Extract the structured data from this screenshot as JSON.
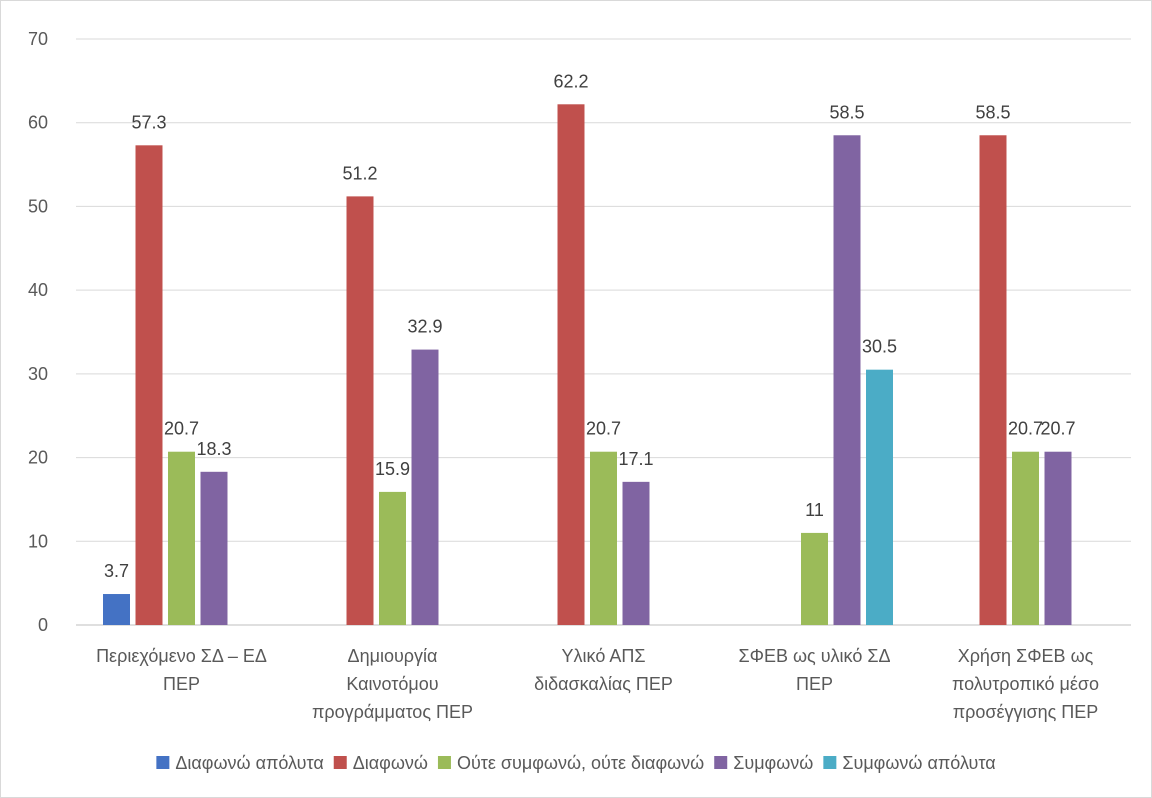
{
  "chart_data": {
    "type": "bar",
    "categories": [
      [
        "Περιεχόμενο ΣΔ – ΕΔ",
        "ΠΕΡ"
      ],
      [
        "Δημιουργία",
        "Καινοτόμου",
        "προγράμματος ΠΕΡ"
      ],
      [
        "Υλικό ΑΠΣ",
        "διδασκαλίας ΠΕΡ"
      ],
      [
        "ΣΦΕΒ ως υλικό ΣΔ",
        "ΠΕΡ"
      ],
      [
        "Χρήση ΣΦΕΒ ως",
        "πολυτροπικό μέσο",
        "προσέγγισης ΠΕΡ"
      ]
    ],
    "series": [
      {
        "name": "Διαφωνώ απόλυτα",
        "color": "#4472c4",
        "values": [
          3.7,
          null,
          null,
          null,
          null
        ]
      },
      {
        "name": "Διαφωνώ",
        "color": "#c0504d",
        "values": [
          57.3,
          51.2,
          62.2,
          null,
          58.5
        ]
      },
      {
        "name": "Ούτε συμφωνώ, ούτε διαφωνώ",
        "color": "#9bbb59",
        "values": [
          20.7,
          15.9,
          20.7,
          11,
          20.7
        ]
      },
      {
        "name": "Συμφωνώ",
        "color": "#8064a2",
        "values": [
          18.3,
          32.9,
          17.1,
          58.5,
          20.7
        ]
      },
      {
        "name": "Συμφωνώ απόλυτα",
        "color": "#4bacc6",
        "values": [
          null,
          null,
          null,
          30.5,
          null
        ]
      }
    ],
    "ylim": [
      0,
      70
    ],
    "yticks": [
      0,
      10,
      20,
      30,
      40,
      50,
      60,
      70
    ],
    "grid": true,
    "legend_position": "bottom",
    "gridline_color": "#d9d9d9",
    "axis_color": "#bfbfbf"
  }
}
